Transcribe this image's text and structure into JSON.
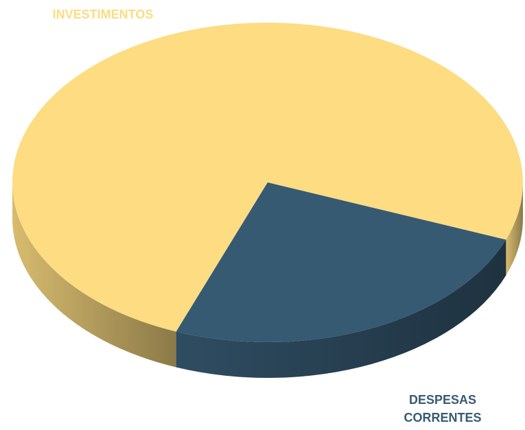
{
  "chart_data": {
    "type": "pie",
    "categories": [
      "INVESTIMENTOS",
      "DESPESAS CORRENTES"
    ],
    "values": [
      75,
      25
    ],
    "colors": [
      "#fddc82",
      "#375a73"
    ]
  }
}
